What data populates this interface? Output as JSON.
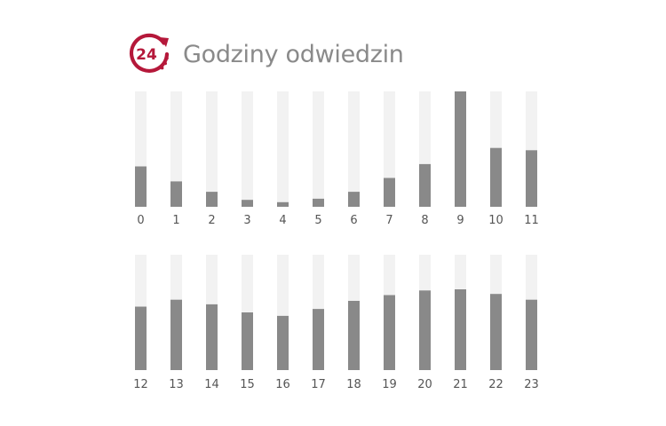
{
  "header": {
    "title": "Godziny odwiedzin",
    "icon": "24-hour-clock-icon",
    "icon_text": "24",
    "accent_color": "#b5183a"
  },
  "chart_data": {
    "type": "bar",
    "title": "Godziny odwiedzin",
    "xlabel": "",
    "ylabel": "",
    "ylim": [
      0,
      1
    ],
    "grid": false,
    "legend": "none",
    "bar_color": "#898989",
    "track_color": "#f2f2f2",
    "rows": [
      {
        "categories": [
          "0",
          "1",
          "2",
          "3",
          "4",
          "5",
          "6",
          "7",
          "8",
          "9",
          "10",
          "11"
        ],
        "values": [
          0.35,
          0.22,
          0.13,
          0.06,
          0.04,
          0.07,
          0.13,
          0.25,
          0.37,
          1.0,
          0.51,
          0.49
        ]
      },
      {
        "categories": [
          "12",
          "13",
          "14",
          "15",
          "16",
          "17",
          "18",
          "19",
          "20",
          "21",
          "22",
          "23"
        ],
        "values": [
          0.55,
          0.61,
          0.57,
          0.5,
          0.47,
          0.53,
          0.6,
          0.65,
          0.69,
          0.7,
          0.66,
          0.61
        ]
      }
    ]
  }
}
